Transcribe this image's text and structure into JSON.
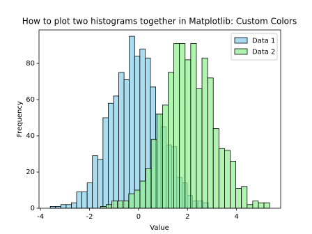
{
  "chart_data": {
    "type": "histogram",
    "title": "How to plot two histograms together in Matplotlib: Custom Colors",
    "x_label": "Value",
    "y_label": "Frequency",
    "xlim": [
      -4.06,
      5.8
    ],
    "ylim": [
      0,
      98.5
    ],
    "xticks": [
      -4,
      -2,
      0,
      2,
      4
    ],
    "yticks": [
      0,
      20,
      40,
      60,
      80
    ],
    "grid": false,
    "legend": "upper right",
    "opacity": 0.7,
    "edge_color": "#000000",
    "series": [
      {
        "name": "Data 1",
        "color": "#87ceeb",
        "bins": [
          -3.6,
          -3.385,
          -3.17,
          -2.955,
          -2.74,
          -2.525,
          -2.31,
          -2.095,
          -1.88,
          -1.665,
          -1.45,
          -1.235,
          -1.02,
          -0.805,
          -0.59,
          -0.375,
          -0.16,
          0.055,
          0.27,
          0.485,
          0.7,
          0.915,
          1.13,
          1.345,
          1.56,
          1.775,
          1.99,
          2.205,
          2.42,
          2.635,
          2.85
        ],
        "values": [
          1,
          1,
          2,
          2,
          3,
          9,
          9,
          14,
          29,
          27,
          50,
          58,
          62,
          75,
          71,
          95,
          84,
          88,
          83,
          67,
          52,
          45,
          35,
          34,
          17,
          14,
          7,
          4,
          4,
          3
        ]
      },
      {
        "name": "Data 2",
        "color": "#90ee90",
        "bins": [
          -1.55,
          -1.32,
          -1.09,
          -0.86,
          -0.63,
          -0.4,
          -0.17,
          0.06,
          0.29,
          0.52,
          0.75,
          0.98,
          1.21,
          1.44,
          1.67,
          1.9,
          2.13,
          2.36,
          2.59,
          2.82,
          3.05,
          3.28,
          3.51,
          3.74,
          3.97,
          4.2,
          4.43,
          4.66,
          4.89,
          5.12,
          5.35
        ],
        "values": [
          1,
          2,
          4,
          4,
          4,
          8,
          10,
          15,
          22,
          38,
          52,
          57,
          75,
          91,
          91,
          82,
          91,
          66,
          83,
          72,
          44,
          33,
          32,
          26,
          11,
          12,
          2,
          4,
          3,
          3
        ]
      }
    ]
  }
}
